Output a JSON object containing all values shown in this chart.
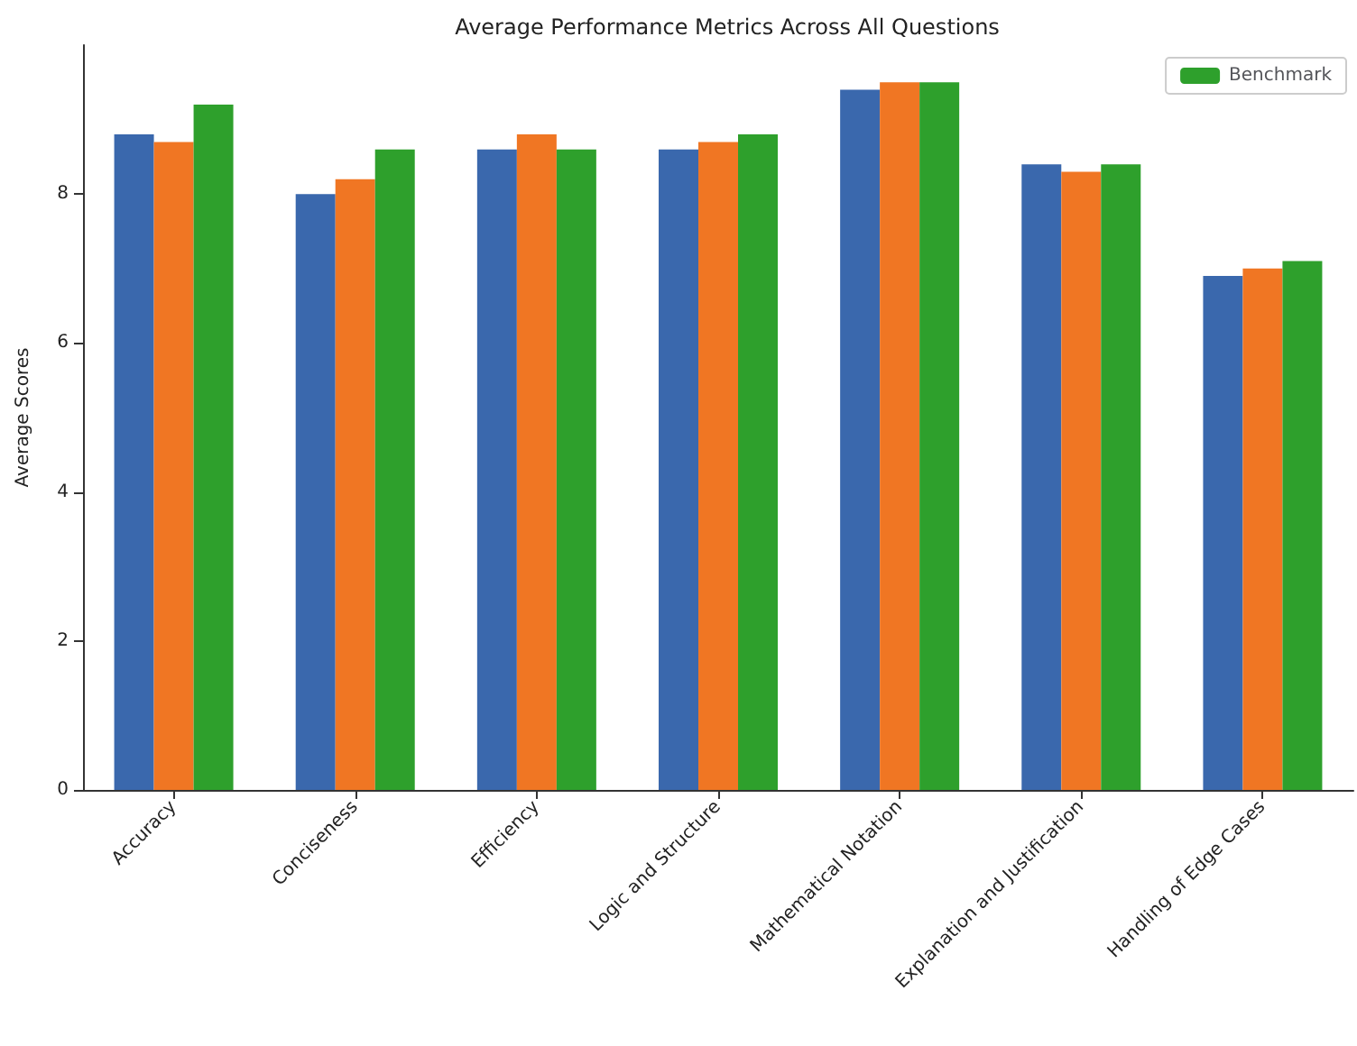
{
  "chart_data": {
    "type": "bar",
    "title": "Average Performance Metrics Across All Questions",
    "ylabel": "Average Scores",
    "categories": [
      "Accuracy",
      "Conciseness",
      "Efficiency",
      "Logic and Structure",
      "Mathematical Notation",
      "Explanation and Justification",
      "Handling of Edge Cases"
    ],
    "series": [
      {
        "color": "#3a68ad",
        "values": [
          8.8,
          8.0,
          8.6,
          8.6,
          9.4,
          8.4,
          6.9
        ]
      },
      {
        "color": "#f07623",
        "values": [
          8.7,
          8.2,
          8.8,
          8.7,
          9.5,
          8.3,
          7.0
        ]
      },
      {
        "name": "Benchmark",
        "color": "#2ea02c",
        "values": [
          9.2,
          8.6,
          8.6,
          8.8,
          9.5,
          8.4,
          7.1
        ]
      }
    ],
    "ylim": [
      0,
      10
    ],
    "yticks": [
      0,
      2,
      4,
      6,
      8
    ],
    "grid": false,
    "legend": "top right"
  }
}
